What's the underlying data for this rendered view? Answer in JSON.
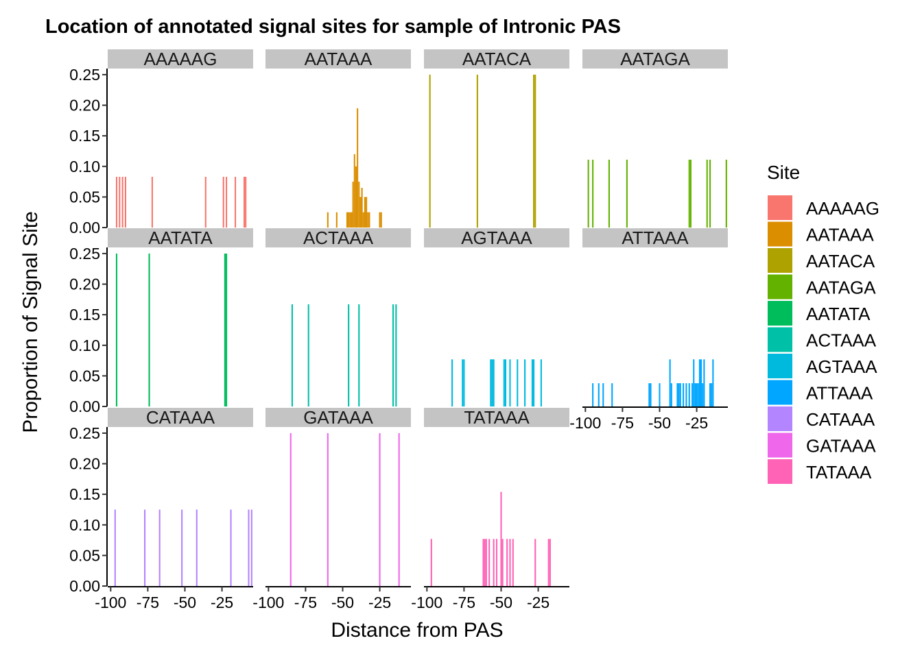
{
  "chart_data": {
    "type": "bar",
    "title": "Location of annotated signal sites for sample of Intronic PAS",
    "xlabel": "Distance from PAS",
    "ylabel": "Proportion of Signal Site",
    "xlim": [
      -102,
      -4
    ],
    "ylim": [
      0,
      0.26
    ],
    "x_ticks": [
      -100,
      -75,
      -50,
      -25
    ],
    "x_tick_labels": [
      "-100",
      "-75",
      "-50",
      "-25"
    ],
    "y_ticks": [
      0,
      0.05,
      0.1,
      0.15,
      0.2,
      0.25
    ],
    "y_tick_labels": [
      "0.00",
      "0.05",
      "0.10",
      "0.15",
      "0.20",
      "0.25"
    ],
    "facet_layout": {
      "ncol": 4,
      "scales": "shared",
      "bottom_axis_panels": [
        "ATTAAA",
        "CATAAA",
        "GATAAA",
        "TATAAA"
      ]
    },
    "legend": {
      "title": "Site",
      "placement": "right",
      "entries": [
        "AAAAAG",
        "AATAAA",
        "AATACA",
        "AATAGA",
        "AATATA",
        "ACTAAA",
        "AGTAAA",
        "ATTAAA",
        "CATAAA",
        "GATAAA",
        "TATAAA"
      ]
    },
    "colors": {
      "AAAAAG": "#F8766D",
      "AATAAA": "#DB8E00",
      "AATACA": "#AEA200",
      "AATAGA": "#64B200",
      "AATATA": "#00BD5C",
      "ACTAAA": "#00C1A7",
      "AGTAAA": "#00BADE",
      "ATTAAA": "#00A6FF",
      "CATAAA": "#B385FF",
      "GATAAA": "#EF67EB",
      "TATAAA": "#FF63B6"
    },
    "series": [
      {
        "name": "AAAAAG",
        "x": [
          -96,
          -94,
          -92,
          -90,
          -72,
          -36,
          -24,
          -22,
          -16,
          -10,
          -9
        ],
        "values": [
          0.083,
          0.083,
          0.083,
          0.083,
          0.083,
          0.083,
          0.083,
          0.083,
          0.083,
          0.083,
          0.083
        ]
      },
      {
        "name": "AATAAA",
        "x": [
          -60,
          -54,
          -47,
          -46,
          -45,
          -44,
          -43,
          -42,
          -41,
          -40,
          -39,
          -38,
          -37,
          -36,
          -35,
          -34,
          -33,
          -32,
          -25,
          -24
        ],
        "values": [
          0.025,
          0.025,
          0.025,
          0.025,
          0.025,
          0.025,
          0.075,
          0.12,
          0.1,
          0.195,
          0.075,
          0.05,
          0.065,
          0.025,
          0.05,
          0.05,
          0.025,
          0.025,
          0.025,
          0.025
        ]
      },
      {
        "name": "AATACA",
        "x": [
          -98,
          -66,
          -28,
          -27
        ],
        "values": [
          0.25,
          0.25,
          0.25,
          0.25
        ]
      },
      {
        "name": "AATAGA",
        "x": [
          -98,
          -95,
          -84,
          -72,
          -30,
          -29,
          -18,
          -16,
          -5
        ],
        "values": [
          0.111,
          0.111,
          0.111,
          0.111,
          0.111,
          0.111,
          0.111,
          0.111,
          0.111
        ]
      },
      {
        "name": "AATATA",
        "x": [
          -96,
          -74,
          -23,
          -22
        ],
        "values": [
          0.25,
          0.25,
          0.25,
          0.25
        ]
      },
      {
        "name": "ACTAAA",
        "x": [
          -84,
          -73,
          -46,
          -39,
          -16,
          -14
        ],
        "values": [
          0.167,
          0.167,
          0.167,
          0.167,
          0.167,
          0.167
        ]
      },
      {
        "name": "AGTAAA",
        "x": [
          -83,
          -76,
          -75,
          -57,
          -56,
          -55,
          -48,
          -47,
          -44,
          -39,
          -34,
          -29,
          -28,
          -23
        ],
        "values": [
          0.077,
          0.077,
          0.077,
          0.077,
          0.077,
          0.077,
          0.077,
          0.077,
          0.077,
          0.077,
          0.077,
          0.077,
          0.077,
          0.077
        ]
      },
      {
        "name": "ATTAAA",
        "x": [
          -95,
          -91,
          -88,
          -82,
          -57,
          -56,
          -50,
          -43,
          -42,
          -38,
          -37,
          -36,
          -34,
          -32,
          -30,
          -28,
          -27,
          -26,
          -25,
          -24,
          -23,
          -22,
          -21,
          -20,
          -16,
          -15,
          -14
        ],
        "values": [
          0.038,
          0.038,
          0.038,
          0.038,
          0.038,
          0.038,
          0.038,
          0.077,
          0.038,
          0.038,
          0.038,
          0.038,
          0.038,
          0.038,
          0.038,
          0.038,
          0.077,
          0.038,
          0.038,
          0.038,
          0.077,
          0.077,
          0.038,
          0.077,
          0.038,
          0.038,
          0.077
        ]
      },
      {
        "name": "CATAAA",
        "x": [
          -97,
          -77,
          -67,
          -52,
          -42,
          -19,
          -7,
          -5
        ],
        "values": [
          0.125,
          0.125,
          0.125,
          0.125,
          0.125,
          0.125,
          0.125,
          0.125
        ]
      },
      {
        "name": "GATAAA",
        "x": [
          -85,
          -60,
          -25,
          -12
        ],
        "values": [
          0.25,
          0.25,
          0.25,
          0.25
        ]
      },
      {
        "name": "TATAAA",
        "x": [
          -97,
          -62,
          -61,
          -60,
          -58,
          -55,
          -53,
          -50,
          -49,
          -46,
          -44,
          -42,
          -27,
          -18,
          -17
        ],
        "values": [
          0.077,
          0.077,
          0.077,
          0.077,
          0.077,
          0.077,
          0.077,
          0.154,
          0.077,
          0.077,
          0.077,
          0.077,
          0.077,
          0.077,
          0.077
        ]
      }
    ]
  }
}
